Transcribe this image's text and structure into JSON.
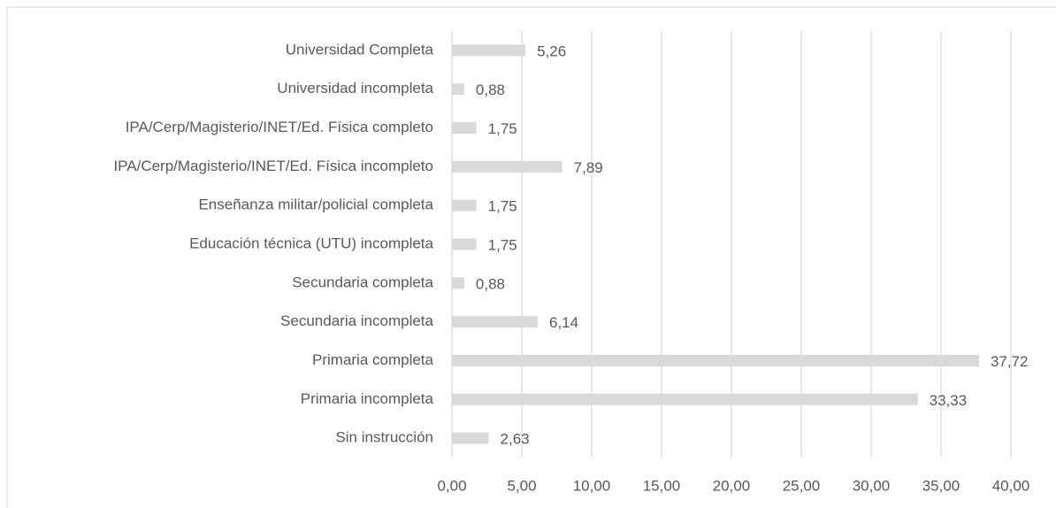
{
  "chart_data": {
    "type": "bar",
    "orientation": "horizontal",
    "categories": [
      "Universidad Completa",
      "Universidad incompleta",
      "IPA/Cerp/Magisterio/INET/Ed. Física completo",
      "IPA/Cerp/Magisterio/INET/Ed. Física incompleto",
      "Enseñanza militar/policial completa",
      "Educación técnica (UTU) incompleta",
      "Secundaria completa",
      "Secundaria incompleta",
      "Primaria completa",
      "Primaria incompleta",
      "Sin instrucción"
    ],
    "values": [
      5.26,
      0.88,
      1.75,
      7.89,
      1.75,
      1.75,
      0.88,
      6.14,
      37.72,
      33.33,
      2.63
    ],
    "value_labels": [
      "5,26",
      "0,88",
      "1,75",
      "7,89",
      "1,75",
      "1,75",
      "0,88",
      "6,14",
      "37,72",
      "33,33",
      "2,63"
    ],
    "color": "#d9d9d9",
    "xlim": [
      0,
      40
    ],
    "xticks": [
      {
        "value": 0,
        "label": "0,00"
      },
      {
        "value": 5,
        "label": "5,00"
      },
      {
        "value": 10,
        "label": "10,00"
      },
      {
        "value": 15,
        "label": "15,00"
      },
      {
        "value": 20,
        "label": "20,00"
      },
      {
        "value": 25,
        "label": "25,00"
      },
      {
        "value": 30,
        "label": "30,00"
      },
      {
        "value": 35,
        "label": "35,00"
      },
      {
        "value": 40,
        "label": "40,00"
      }
    ],
    "grid": true
  }
}
